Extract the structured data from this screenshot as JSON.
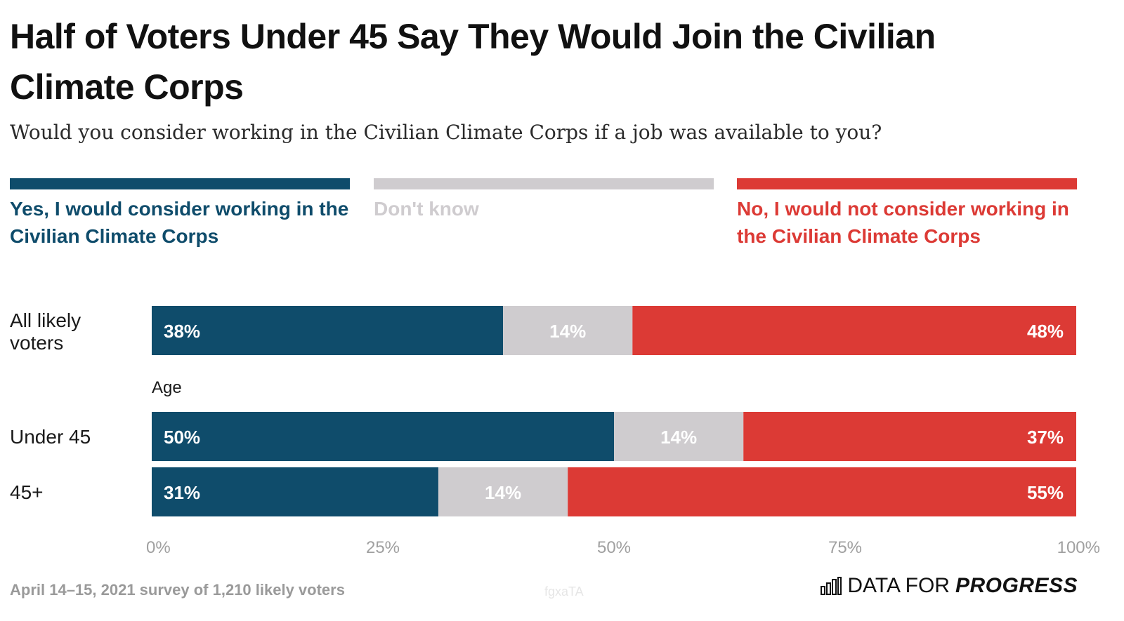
{
  "header": {
    "title": "Half of Voters Under 45 Say They Would Join the Civilian Climate Corps",
    "subtitle": "Would you consider working in the Civilian Climate Corps if a job was available to you?"
  },
  "legend": [
    {
      "label": "Yes, I would consider working in the Civilian Climate Corps",
      "color": "#0f4c6b"
    },
    {
      "label": "Don't know",
      "color": "#cfcccf"
    },
    {
      "label": "No, I would not consider working in the Civilian Climate Corps",
      "color": "#dc3a35"
    }
  ],
  "chart_data": {
    "type": "bar",
    "orientation": "horizontal",
    "stacked": true,
    "title": "Half of Voters Under 45 Say They Would Join the Civilian Climate Corps",
    "subtitle": "Would you consider working in the Civilian Climate Corps if a job was available to you?",
    "categories": [
      "All likely voters",
      "Under 45",
      "45+"
    ],
    "group_label": "Age",
    "series": [
      {
        "name": "Yes, I would consider working in the Civilian Climate Corps",
        "color": "#0f4c6b",
        "values": [
          38,
          50,
          31
        ],
        "labels": [
          "38%",
          "50%",
          "31%"
        ]
      },
      {
        "name": "Don't know",
        "color": "#cfcccf",
        "values": [
          14,
          14,
          14
        ],
        "labels": [
          "14%",
          "14%",
          "14%"
        ]
      },
      {
        "name": "No, I would not consider working in the Civilian Climate Corps",
        "color": "#dc3a35",
        "values": [
          48,
          37,
          55
        ],
        "labels": [
          "48%",
          "37%",
          "55%"
        ]
      }
    ],
    "xlim": [
      0,
      100
    ],
    "xticks": [
      0,
      25,
      50,
      75,
      100
    ],
    "xtick_labels": [
      "0%",
      "25%",
      "50%",
      "75%",
      "100%"
    ],
    "legend_position": "top"
  },
  "footer": {
    "note": "April 14–15, 2021 survey of 1,210 likely voters",
    "watermark": "fgxaTA",
    "brand_prefix": "DATA FOR",
    "brand_strong": "PROGRESS"
  }
}
